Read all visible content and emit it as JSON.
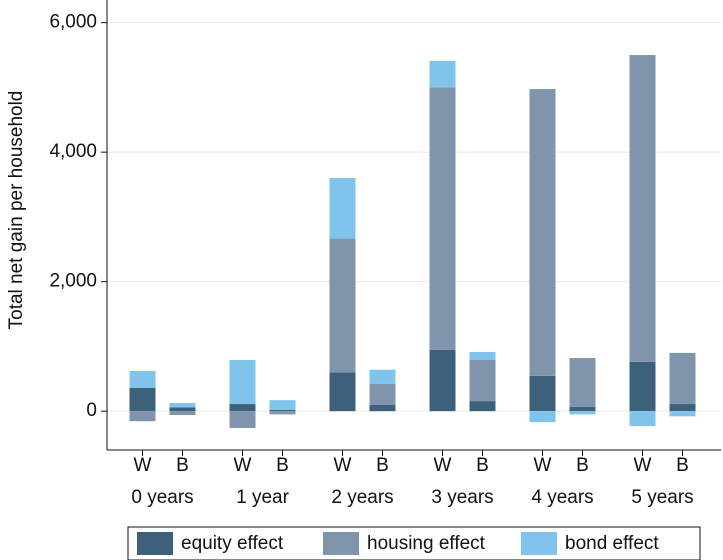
{
  "chart_data": {
    "type": "stacked_bar",
    "y_label": "Total net gain per household",
    "categories": [
      "W",
      "B",
      "W",
      "B",
      "W",
      "B",
      "W",
      "B",
      "W",
      "B",
      "W",
      "B"
    ],
    "groups": [
      "0 years",
      "1 year",
      "2 years",
      "3 years",
      "4 years",
      "5 years"
    ],
    "series": [
      {
        "name": "equity effect",
        "color": "#3e617b",
        "values": [
          360,
          60,
          110,
          20,
          600,
          95,
          945,
          155,
          545,
          65,
          760,
          110
        ]
      },
      {
        "name": "housing effect",
        "color": "#8095ac",
        "values": [
          -155,
          -60,
          -260,
          -50,
          2070,
          325,
          4055,
          635,
          4430,
          755,
          4740,
          790
        ]
      },
      {
        "name": "bond effect",
        "color": "#80c4ec",
        "values": [
          260,
          65,
          680,
          150,
          930,
          220,
          410,
          125,
          -170,
          -50,
          -230,
          -80
        ]
      }
    ],
    "ylim": [
      -600,
      6350
    ],
    "yticks": [
      0,
      {
        "value": 2000,
        "label": "2,000"
      },
      {
        "value": 4000,
        "label": "4,000"
      },
      {
        "value": 6000,
        "label": "6,000"
      }
    ],
    "grid": true
  }
}
